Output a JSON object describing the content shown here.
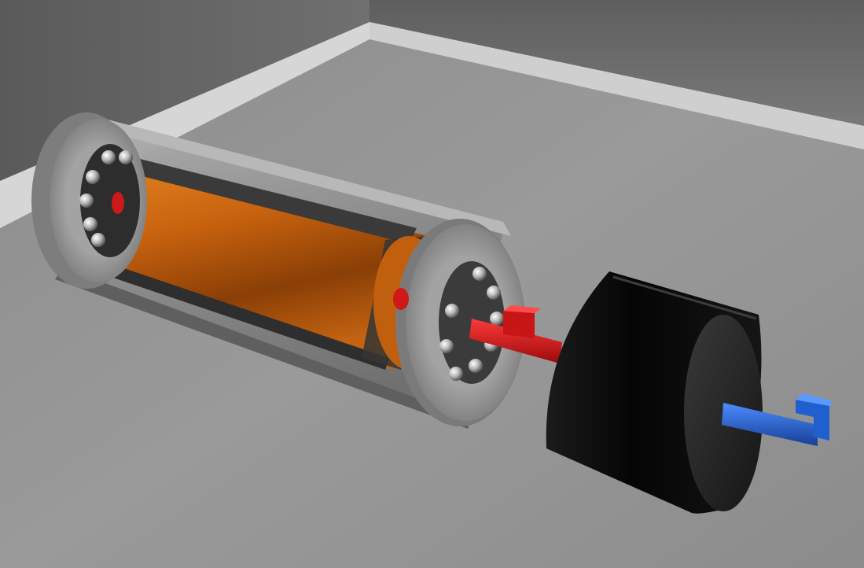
{
  "scene": {
    "subject": "motor-assembly-cutaway",
    "colors": {
      "floor": "#8f8f8f",
      "wall_back": "#7a7a7a",
      "wall_left": "#6c6c6c",
      "baseboard": "#d9d9d9",
      "housing_metal": "#8d8d8d",
      "copper_winding": "#c8620f",
      "magnet_steel": "#3a3a3a",
      "shaft_red": "#d01818",
      "flywheel_black": "#0b0b0b",
      "shaft_blue": "#1f5fd0"
    }
  }
}
